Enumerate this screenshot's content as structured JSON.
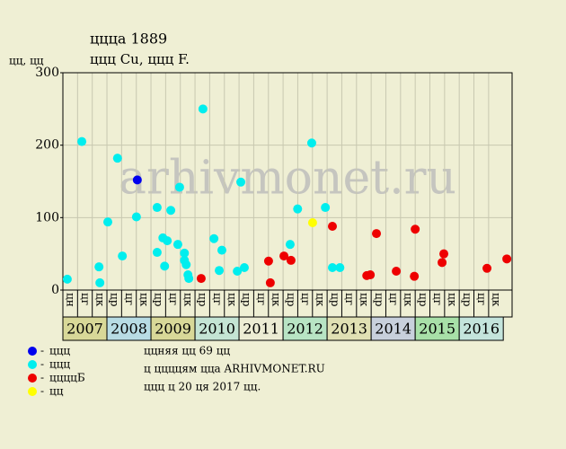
{
  "chart_data": {
    "type": "scatter",
    "title": "ццца 1889",
    "subtitle": "ццц Cu, ццц F.",
    "y_label": "цц, цц",
    "watermark": "arhivmonet.ru",
    "xlim": [
      2007,
      2017.2
    ],
    "ylim": [
      0,
      300
    ],
    "yticks": [
      0,
      100,
      200,
      300
    ],
    "grid": true,
    "xticks": [
      {
        "value": 2007,
        "label": "цн"
      },
      {
        "value": 2007.333,
        "label": "цг"
      },
      {
        "value": 2007.667,
        "label": "цк"
      },
      {
        "value": 2008,
        "label": "цр"
      },
      {
        "value": 2008.333,
        "label": "цг"
      },
      {
        "value": 2008.667,
        "label": "цк"
      },
      {
        "value": 2009,
        "label": "цр"
      },
      {
        "value": 2009.333,
        "label": "цг"
      },
      {
        "value": 2009.667,
        "label": "цк"
      },
      {
        "value": 2010,
        "label": "цр"
      },
      {
        "value": 2010.333,
        "label": "цг"
      },
      {
        "value": 2010.667,
        "label": "цк"
      },
      {
        "value": 2011,
        "label": "цр"
      },
      {
        "value": 2011.333,
        "label": "цг"
      },
      {
        "value": 2011.667,
        "label": "цк"
      },
      {
        "value": 2012,
        "label": "цр"
      },
      {
        "value": 2012.333,
        "label": "цг"
      },
      {
        "value": 2012.667,
        "label": "цк"
      },
      {
        "value": 2013,
        "label": "цр"
      },
      {
        "value": 2013.333,
        "label": "цг"
      },
      {
        "value": 2013.667,
        "label": "цк"
      },
      {
        "value": 2014,
        "label": "цр"
      },
      {
        "value": 2014.333,
        "label": "цг"
      },
      {
        "value": 2014.667,
        "label": "цк"
      },
      {
        "value": 2015,
        "label": "цр"
      },
      {
        "value": 2015.333,
        "label": "цг"
      },
      {
        "value": 2015.667,
        "label": "цк"
      },
      {
        "value": 2016,
        "label": "цр"
      },
      {
        "value": 2016.333,
        "label": "цг"
      },
      {
        "value": 2016.667,
        "label": "цк"
      }
    ],
    "years": [
      "2007",
      "2008",
      "2009",
      "2010",
      "2011",
      "2012",
      "2013",
      "2014",
      "2015",
      "2016"
    ],
    "series": [
      {
        "name": "ццц",
        "color": "#0000ee",
        "x": [
          2008.69
        ],
        "values": [
          152
        ]
      },
      {
        "name": "ццц",
        "color": "#00eeee",
        "x": [
          2007.1,
          2007.43,
          2007.82,
          2007.84,
          2008.02,
          2008.24,
          2008.35,
          2008.67,
          2009.14,
          2009.14,
          2009.27,
          2009.31,
          2009.37,
          2009.45,
          2009.61,
          2009.65,
          2009.76,
          2009.76,
          2009.8,
          2009.84,
          2009.86,
          2010.18,
          2010.43,
          2010.55,
          2010.61,
          2010.96,
          2011.04,
          2011.12,
          2012.16,
          2012.33,
          2012.65,
          2012.96,
          2013.12,
          2013.29
        ],
        "values": [
          15,
          205,
          32,
          10,
          94,
          182,
          47,
          101,
          114,
          52,
          72,
          33,
          68,
          110,
          63,
          142,
          51,
          41,
          35,
          21,
          16,
          250,
          71,
          27,
          55,
          26,
          149,
          31,
          63,
          112,
          203,
          114,
          31,
          31
        ]
      },
      {
        "name": "ццццБ",
        "color": "#ee0000",
        "x": [
          2010.14,
          2011.67,
          2011.71,
          2012.02,
          2012.18,
          2013.12,
          2013.9,
          2013.98,
          2014.12,
          2014.57,
          2014.98,
          2015.0,
          2015.61,
          2015.65,
          2016.63,
          2017.08
        ],
        "values": [
          16,
          40,
          10,
          47,
          41,
          88,
          20,
          21,
          78,
          26,
          19,
          84,
          38,
          50,
          30,
          43
        ]
      },
      {
        "name": "цц",
        "color": "#ffff00",
        "x": [
          2012.67
        ],
        "values": [
          93
        ]
      }
    ],
    "notes": [
      "ццняя цц 69 цц",
      "ц ццццям ццa ARHIVMONET.RU",
      "ццц ц 20 ця 2017 цц."
    ]
  }
}
